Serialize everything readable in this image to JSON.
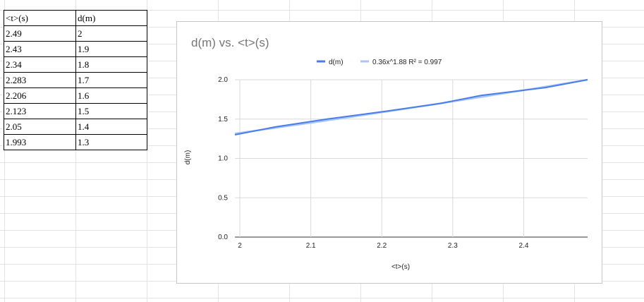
{
  "table": {
    "headers": [
      "<t>(s)",
      "d(m)"
    ],
    "rows": [
      [
        "2.49",
        "2"
      ],
      [
        "2.43",
        "1.9"
      ],
      [
        "2.34",
        "1.8"
      ],
      [
        "2.283",
        "1.7"
      ],
      [
        "2.206",
        "1.6"
      ],
      [
        "2.123",
        "1.5"
      ],
      [
        "2.05",
        "1.4"
      ],
      [
        "1.993",
        "1.3"
      ]
    ]
  },
  "chart_data": {
    "type": "line",
    "title": "d(m) vs. <t>(s)",
    "xlabel": "<t>(s)",
    "ylabel": "d(m)",
    "xlim": [
      1.993,
      2.49
    ],
    "ylim": [
      0,
      2
    ],
    "xticks": [
      2,
      2.1,
      2.2,
      2.3,
      2.4
    ],
    "xtick_labels": [
      "2",
      "2.1",
      "2.2",
      "2.3",
      "2.4"
    ],
    "yticks": [
      0,
      0.5,
      1,
      1.5,
      2
    ],
    "ytick_labels": [
      "0.0",
      "0.5",
      "1.0",
      "1.5",
      "2.0"
    ],
    "grid": true,
    "legend_position": "top",
    "series": [
      {
        "name": "d(m)",
        "color": "#4a7de9",
        "x": [
          1.993,
          2.05,
          2.123,
          2.206,
          2.283,
          2.34,
          2.43,
          2.49
        ],
        "y": [
          1.3,
          1.4,
          1.5,
          1.6,
          1.7,
          1.8,
          1.9,
          2
        ]
      },
      {
        "name": "0.36x^1.88 R² = 0.997",
        "color": "#a8c6f7",
        "trendline": {
          "coefficient": 0.36,
          "exponent": 1.88
        }
      }
    ]
  }
}
